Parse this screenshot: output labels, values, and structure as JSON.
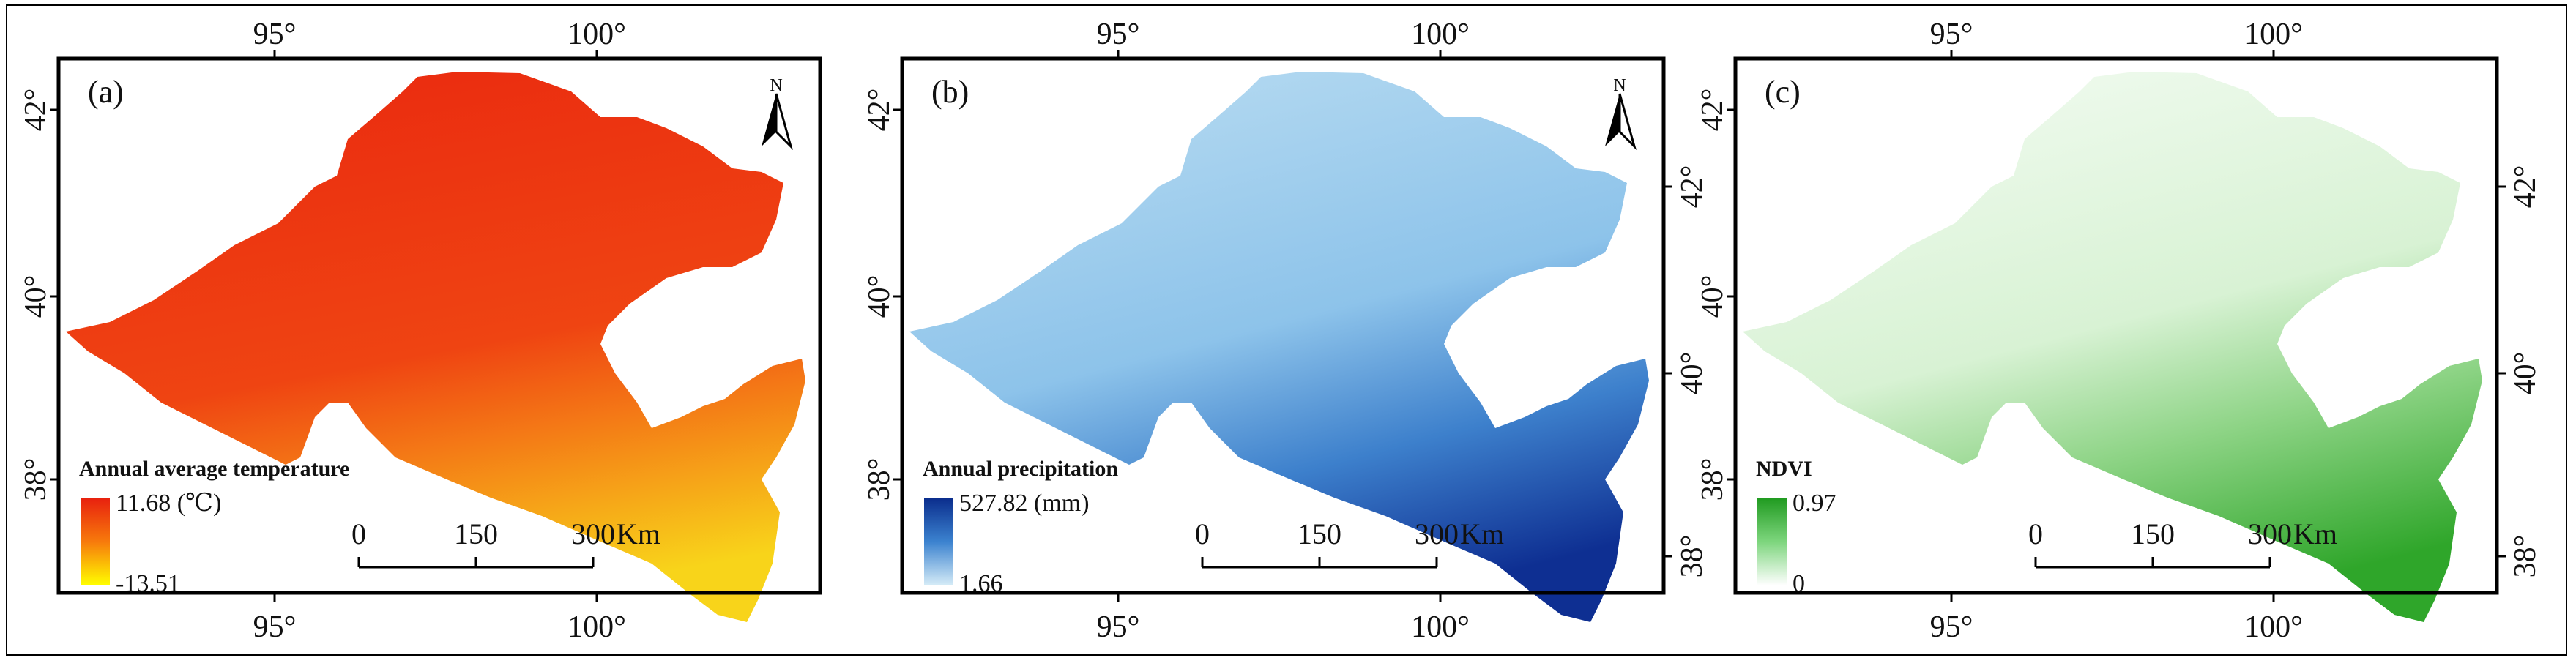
{
  "panels": [
    {
      "id": "a",
      "label": "(a)",
      "top_ticks": [
        "95°",
        "100°"
      ],
      "bottom_ticks": [
        "95°",
        "100°"
      ],
      "left_ticks": [
        "42°",
        "40°",
        "38°"
      ],
      "right_ticks": [],
      "north": "N",
      "legend_title": "Annual average temperature",
      "legend_max": "11.68 (℃)",
      "legend_min": "-13.51",
      "legend_colors": {
        "top": "#e8200e",
        "mid": "#f77a0c",
        "bottom": "#ffff00"
      },
      "scale_ticks": [
        "0",
        "150",
        "300"
      ],
      "scale_unit": "Km",
      "fill": {
        "north": "#ea2a10",
        "middle": "#f05a12",
        "south": "#f8d41a"
      }
    },
    {
      "id": "b",
      "label": "(b)",
      "top_ticks": [
        "95°",
        "100°"
      ],
      "bottom_ticks": [
        "95°",
        "100°"
      ],
      "left_ticks": [
        "42°",
        "40°",
        "38°"
      ],
      "right_ticks": [
        "42°",
        "40°",
        "38°"
      ],
      "north": "N",
      "legend_title": "Annual  precipitation",
      "legend_max": "527.82 (mm)",
      "legend_min": "1.66",
      "legend_colors": {
        "top": "#0a2c8c",
        "mid": "#3b82cf",
        "bottom": "#d6ecf7"
      },
      "scale_ticks": [
        "0",
        "150",
        "300"
      ],
      "scale_unit": "Km",
      "fill": {
        "north": "#a9d3ee",
        "middle": "#6fb0e3",
        "south": "#12399e"
      }
    },
    {
      "id": "c",
      "label": "(c)",
      "top_ticks": [
        "95°",
        "100°"
      ],
      "bottom_ticks": [
        "95°",
        "100°"
      ],
      "left_ticks": [
        "42°",
        "40°",
        "38°"
      ],
      "right_ticks": [
        "42°",
        "40°",
        "38°"
      ],
      "north": "",
      "legend_title": "NDVI",
      "legend_max": "0.97",
      "legend_min": "0",
      "legend_colors": {
        "top": "#1f9a1f",
        "mid": "#7dd57d",
        "bottom": "#ffffff"
      },
      "scale_ticks": [
        "0",
        "150",
        "300"
      ],
      "scale_unit": "Km",
      "fill": {
        "north": "#e9f8e8",
        "middle": "#c3ecbf",
        "south": "#45b83e"
      }
    }
  ]
}
